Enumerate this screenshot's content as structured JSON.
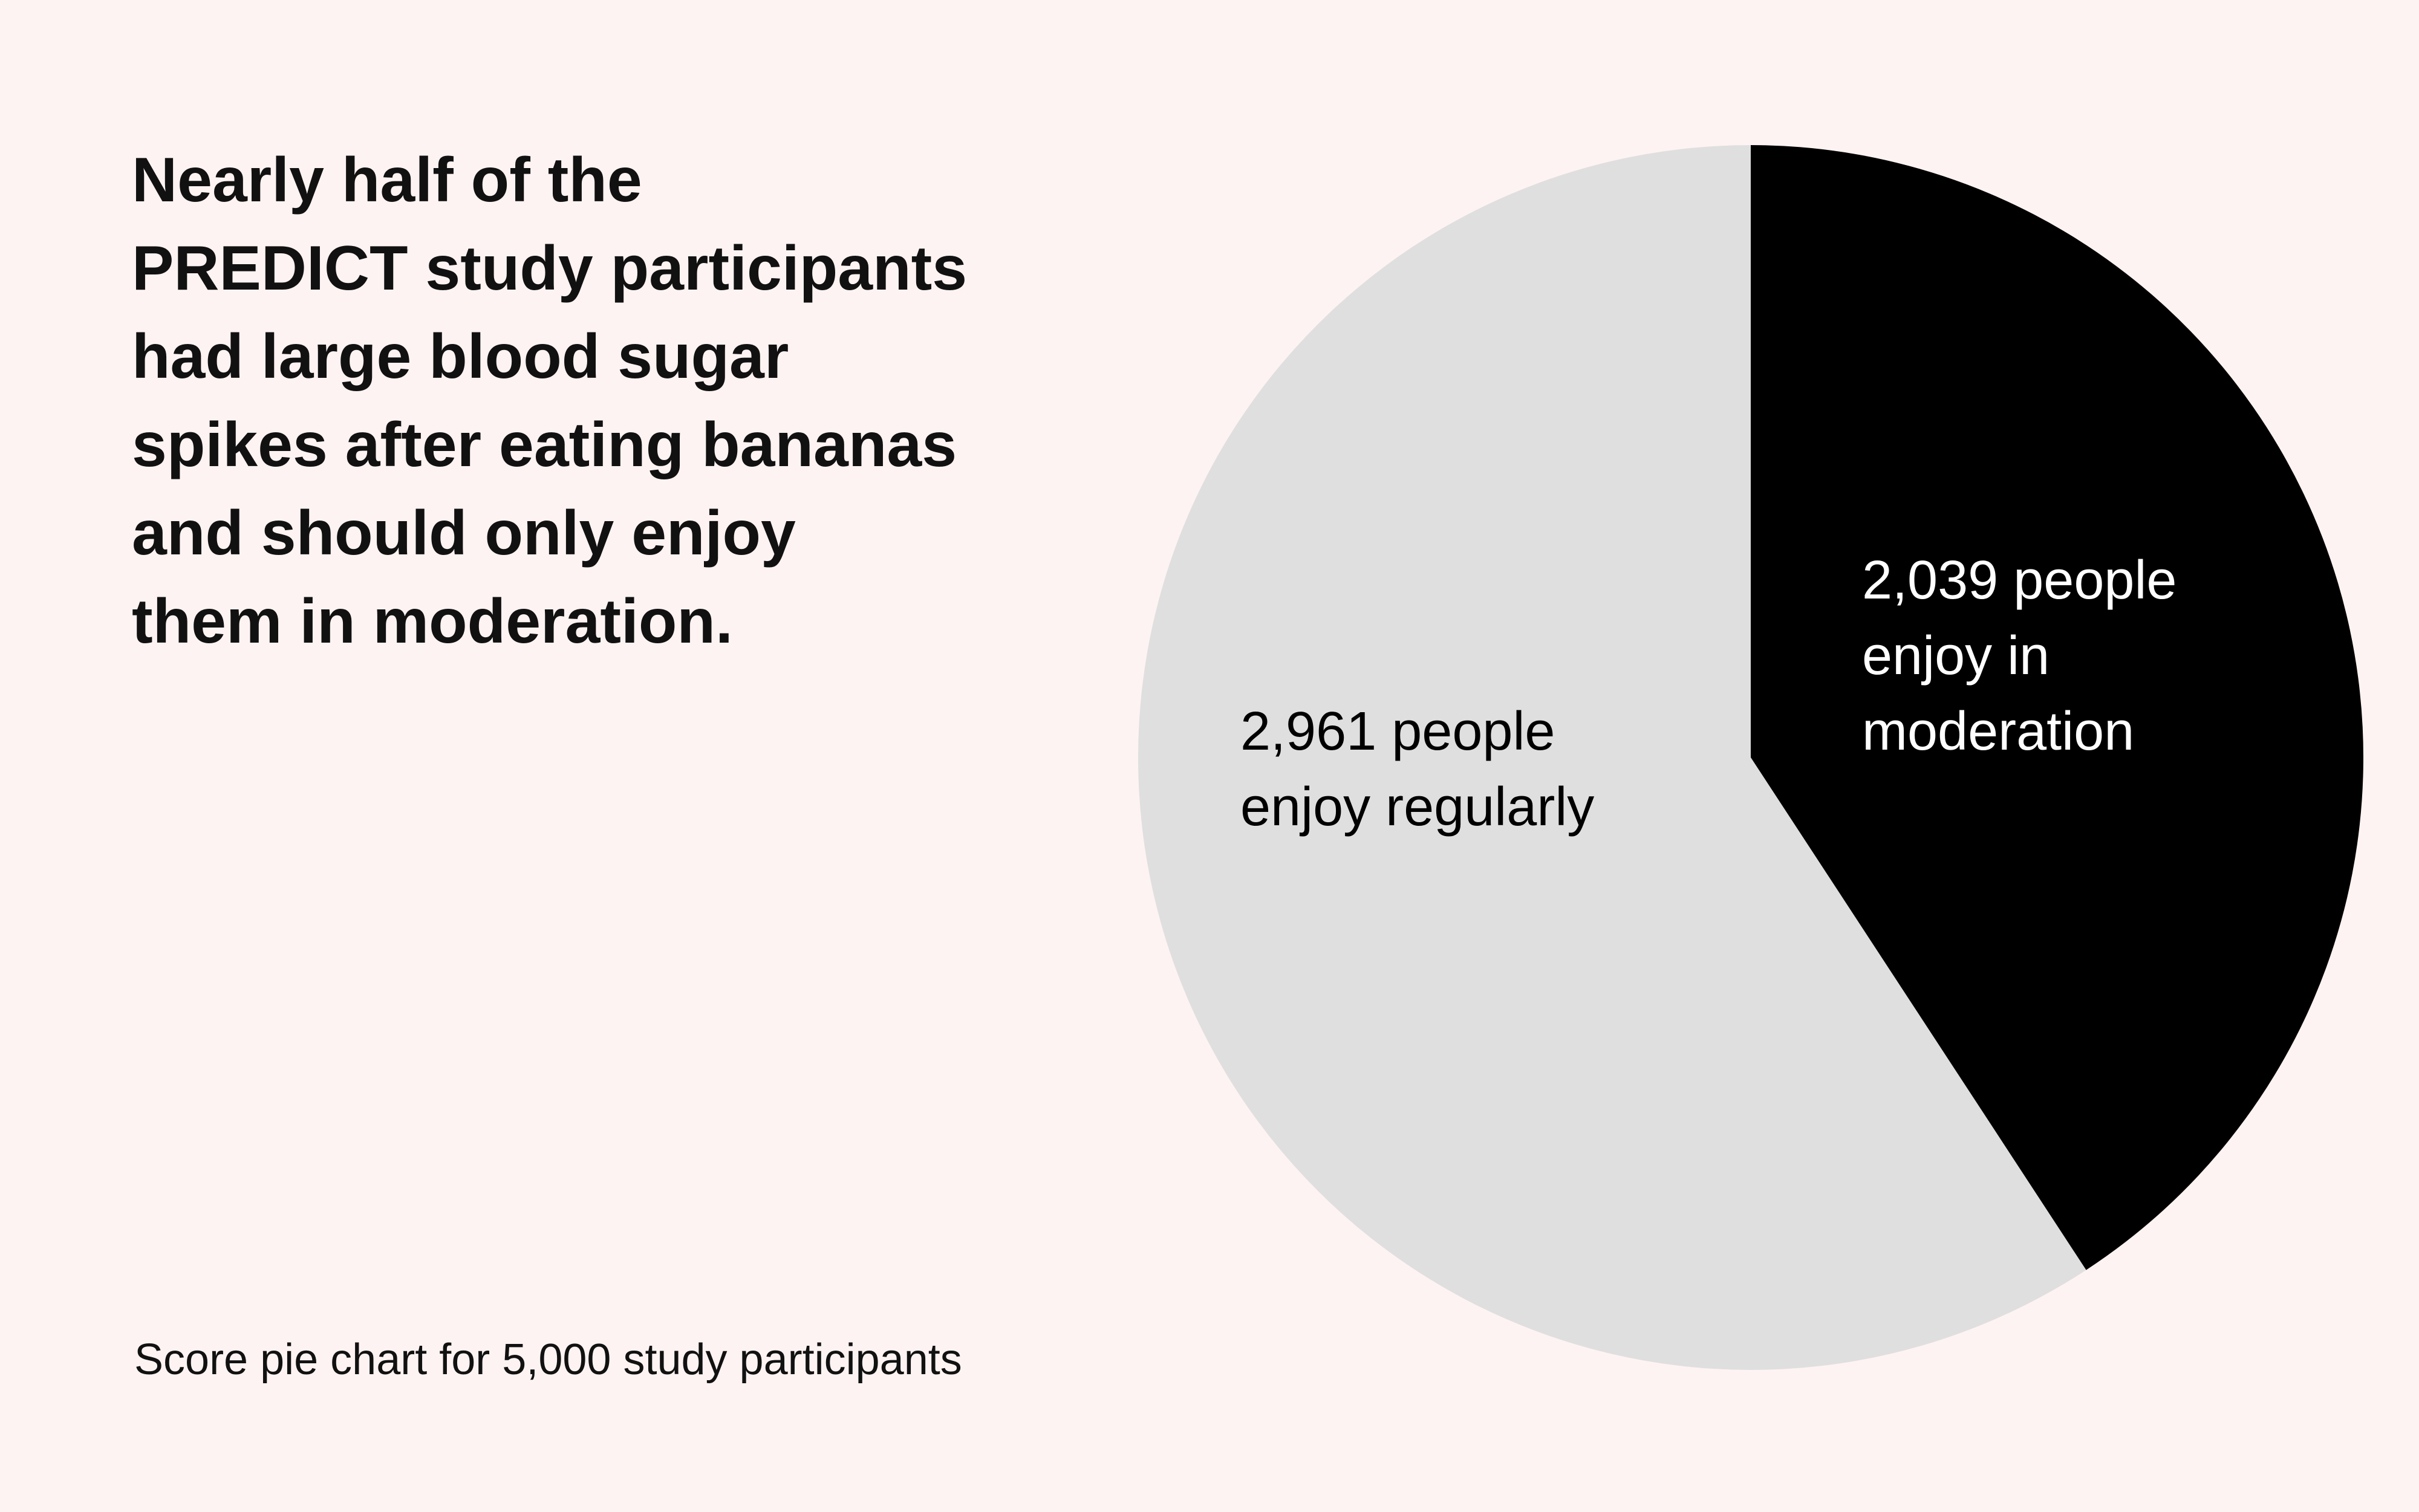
{
  "chart_data": {
    "type": "pie",
    "title": "Nearly half of the\nPREDICT study participants\nhad large blood sugar\nspikes after eating bananas\nand should only enjoy\nthem in moderation.",
    "values": [
      2039,
      2961
    ],
    "value_labels": [
      "2,039 people\nenjoy in\nmoderation",
      "2,961 people\nenjoy regularly"
    ],
    "colors": [
      "#000000",
      "#dfdfdf"
    ],
    "label_colors": [
      "#ffffff",
      "#000000"
    ],
    "caption": "Score pie chart for 5,000 study participants"
  }
}
